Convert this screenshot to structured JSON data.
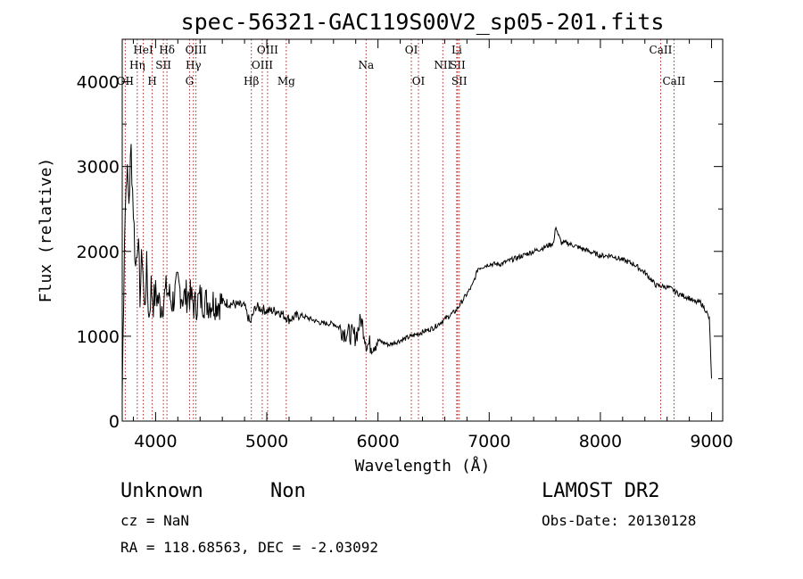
{
  "chart_data": {
    "type": "line",
    "title": "spec-56321-GAC119S00V2_sp05-201.fits",
    "xlabel": "Wavelength (Å)",
    "ylabel": "Flux (relative)",
    "xlim": [
      3700,
      9100
    ],
    "ylim": [
      0,
      4500
    ],
    "xticks": [
      4000,
      5000,
      6000,
      7000,
      8000,
      9000
    ],
    "yticks": [
      0,
      1000,
      2000,
      3000,
      4000
    ],
    "grid": false,
    "lines": [
      {
        "label": "HeI",
        "wave": 3889,
        "row": 0
      },
      {
        "label": "Hη",
        "wave": 3835,
        "row": 1
      },
      {
        "label": "OII",
        "wave": 3727,
        "row": 2
      },
      {
        "label": "Hδ",
        "wave": 4102,
        "row": 0
      },
      {
        "label": "SII",
        "wave": 4070,
        "row": 1
      },
      {
        "label": "H",
        "wave": 3970,
        "row": 2
      },
      {
        "label": "OIII",
        "wave": 4363,
        "row": 0
      },
      {
        "label": "Hγ",
        "wave": 4340,
        "row": 1
      },
      {
        "label": "G",
        "wave": 4305,
        "row": 2
      },
      {
        "label": "OIII",
        "wave": 5007,
        "row": 0
      },
      {
        "label": "OIII",
        "wave": 4959,
        "row": 1
      },
      {
        "label": "Hβ",
        "wave": 4861,
        "row": 2
      },
      {
        "label": "Mg",
        "wave": 5175,
        "row": 2
      },
      {
        "label": "Na",
        "wave": 5893,
        "row": 1
      },
      {
        "label": "OI",
        "wave": 6300,
        "row": 0
      },
      {
        "label": "OI",
        "wave": 6364,
        "row": 2
      },
      {
        "label": "NII",
        "wave": 6583,
        "row": 1
      },
      {
        "label": "Li",
        "wave": 6708,
        "row": 0
      },
      {
        "label": "SII",
        "wave": 6716,
        "row": 1
      },
      {
        "label": "SII",
        "wave": 6731,
        "row": 2
      },
      {
        "label": "CaII",
        "wave": 8542,
        "row": 0
      },
      {
        "label": "CaII",
        "wave": 8662,
        "row": 2
      }
    ],
    "line_color": "#b22222",
    "series": [
      {
        "x": [
          3700,
          3720,
          3740,
          3760,
          3780,
          3800,
          3820,
          3840,
          3860,
          3880,
          3900,
          3920,
          3940,
          3960,
          3980,
          4000,
          4050,
          4100,
          4150,
          4200,
          4250,
          4300,
          4350,
          4400,
          4450,
          4500,
          4600,
          4700,
          4800,
          4850,
          4900,
          5000,
          5100,
          5200,
          5300,
          5400,
          5500,
          5600,
          5700,
          5800,
          5850,
          5900,
          5950,
          6000,
          6100,
          6200,
          6300,
          6400,
          6500,
          6600,
          6700,
          6750,
          6800,
          6850,
          6900,
          7000,
          7100,
          7200,
          7300,
          7400,
          7500,
          7580,
          7600,
          7620,
          7650,
          7700,
          7800,
          7900,
          8000,
          8100,
          8200,
          8300,
          8400,
          8500,
          8600,
          8650,
          8700,
          8800,
          8850,
          8900,
          8950,
          8980,
          9000
        ],
        "y": [
          300,
          2200,
          3000,
          2600,
          3200,
          2500,
          1800,
          2200,
          1500,
          2000,
          1300,
          1800,
          1200,
          1600,
          1400,
          1500,
          1350,
          1550,
          1400,
          1600,
          1450,
          1500,
          1350,
          1450,
          1400,
          1400,
          1400,
          1380,
          1350,
          1150,
          1350,
          1300,
          1300,
          1200,
          1250,
          1200,
          1150,
          1150,
          1050,
          1000,
          1200,
          900,
          900,
          950,
          900,
          950,
          1000,
          1050,
          1100,
          1200,
          1300,
          1400,
          1500,
          1600,
          1800,
          1850,
          1850,
          1900,
          1950,
          2000,
          2050,
          2100,
          2300,
          2200,
          2100,
          2100,
          2050,
          2000,
          1950,
          1950,
          1900,
          1850,
          1750,
          1600,
          1580,
          1550,
          1500,
          1450,
          1400,
          1400,
          1300,
          1200,
          500
        ]
      }
    ]
  },
  "footer": {
    "object_class": "Unknown",
    "subclass": "Non",
    "survey": "LAMOST DR2",
    "cz": "cz = NaN",
    "obs_date": "Obs-Date: 20130128",
    "coords": "RA = 118.68563, DEC =  -2.03092"
  }
}
